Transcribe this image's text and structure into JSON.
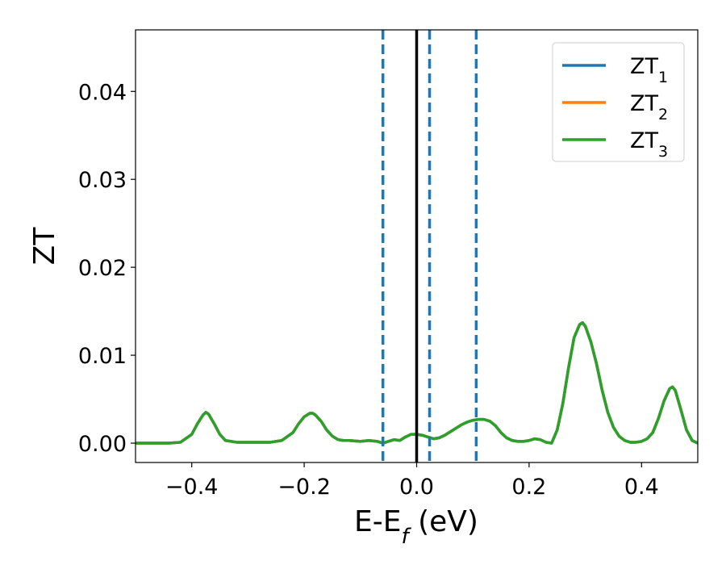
{
  "chart_data": {
    "type": "line",
    "xlabel": "E-E",
    "xlabel_sub": "f",
    "xlabel_unit": " (eV)",
    "ylabel": "ZT",
    "xlim": [
      -0.5,
      0.5
    ],
    "ylim": [
      -0.0022,
      0.047
    ],
    "xticks": [
      -0.4,
      -0.2,
      0.0,
      0.2,
      0.4
    ],
    "xtick_labels": [
      "−0.4",
      "−0.2",
      "0.0",
      "0.2",
      "0.4"
    ],
    "yticks": [
      0.0,
      0.01,
      0.02,
      0.03,
      0.04
    ],
    "ytick_labels": [
      "0.00",
      "0.01",
      "0.02",
      "0.03",
      "0.04"
    ],
    "grid": false,
    "legend_position": "top-right",
    "fermi_line": {
      "x": 0.0,
      "color": "#000000",
      "style": "solid"
    },
    "dashed_lines": {
      "x": [
        -0.06,
        0.023,
        0.106
      ],
      "color": "#1f77b4",
      "style": "dashed"
    },
    "series": [
      {
        "name": "ZT",
        "sub": "1",
        "color": "#1f77b4"
      },
      {
        "name": "ZT",
        "sub": "2",
        "color": "#ff7f0e"
      },
      {
        "name": "ZT",
        "sub": "3",
        "color": "#2ca02c"
      }
    ],
    "x": [
      -0.5,
      -0.47,
      -0.44,
      -0.42,
      -0.4,
      -0.39,
      -0.38,
      -0.375,
      -0.37,
      -0.36,
      -0.35,
      -0.34,
      -0.32,
      -0.3,
      -0.28,
      -0.26,
      -0.24,
      -0.22,
      -0.21,
      -0.2,
      -0.19,
      -0.185,
      -0.18,
      -0.17,
      -0.16,
      -0.15,
      -0.14,
      -0.13,
      -0.12,
      -0.1,
      -0.085,
      -0.07,
      -0.06,
      -0.05,
      -0.04,
      -0.03,
      -0.02,
      -0.01,
      0.0,
      0.01,
      0.02,
      0.03,
      0.04,
      0.05,
      0.06,
      0.07,
      0.08,
      0.09,
      0.1,
      0.11,
      0.12,
      0.13,
      0.14,
      0.15,
      0.16,
      0.17,
      0.18,
      0.19,
      0.2,
      0.21,
      0.22,
      0.23,
      0.24,
      0.25,
      0.26,
      0.27,
      0.28,
      0.29,
      0.295,
      0.3,
      0.31,
      0.32,
      0.33,
      0.34,
      0.35,
      0.36,
      0.37,
      0.38,
      0.39,
      0.4,
      0.41,
      0.42,
      0.43,
      0.44,
      0.45,
      0.455,
      0.46,
      0.47,
      0.48,
      0.49,
      0.5
    ],
    "values": [
      0.0,
      0.0,
      0.0,
      0.0001,
      0.001,
      0.0022,
      0.0032,
      0.0035,
      0.0033,
      0.0022,
      0.001,
      0.0003,
      0.0001,
      0.0001,
      0.0001,
      0.0001,
      0.0003,
      0.0012,
      0.0022,
      0.003,
      0.0034,
      0.0034,
      0.0032,
      0.0025,
      0.0015,
      0.0008,
      0.0004,
      0.0003,
      0.0003,
      0.0002,
      0.0003,
      0.0002,
      0.0,
      0.0002,
      0.0004,
      0.0003,
      0.0007,
      0.001,
      0.001,
      0.0009,
      0.0007,
      0.0005,
      0.0006,
      0.0009,
      0.0013,
      0.0017,
      0.0021,
      0.0024,
      0.0026,
      0.0027,
      0.0027,
      0.0025,
      0.002,
      0.0012,
      0.0006,
      0.0003,
      0.0002,
      0.0002,
      0.0003,
      0.0005,
      0.0004,
      0.0001,
      0.0,
      0.0015,
      0.0045,
      0.0085,
      0.012,
      0.0135,
      0.0137,
      0.0133,
      0.0115,
      0.009,
      0.006,
      0.0035,
      0.0018,
      0.0008,
      0.0003,
      0.0001,
      0.0001,
      0.0002,
      0.0005,
      0.0012,
      0.0028,
      0.0048,
      0.0062,
      0.0064,
      0.006,
      0.0038,
      0.0015,
      0.0003,
      0.0
    ]
  }
}
